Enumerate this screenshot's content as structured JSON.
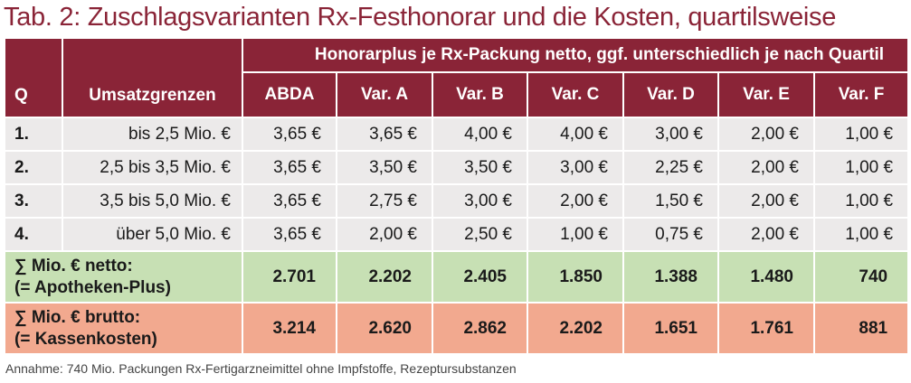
{
  "title": "Tab. 2: Zuschlagsvarianten Rx-Festhonorar und die Kosten, quartilsweise",
  "header": {
    "span_label": "Honorarplus je Rx-Packung netto, ggf. unterschiedlich je nach Quartil",
    "q_label": "Q",
    "umsatz_label": "Umsatzgrenzen",
    "columns": [
      "ABDA",
      "Var. A",
      "Var. B",
      "Var. C",
      "Var. D",
      "Var. E",
      "Var. F"
    ]
  },
  "rows": [
    {
      "q": "1.",
      "range": "bis 2,5 Mio. €",
      "values": [
        "3,65 €",
        "3,65 €",
        "4,00 €",
        "4,00 €",
        "3,00 €",
        "2,00 €",
        "1,00 €"
      ]
    },
    {
      "q": "2.",
      "range": "2,5 bis 3,5 Mio. €",
      "values": [
        "3,65 €",
        "3,50 €",
        "3,50 €",
        "3,00 €",
        "2,25 €",
        "2,00 €",
        "1,00 €"
      ]
    },
    {
      "q": "3.",
      "range": "3,5 bis 5,0 Mio. €",
      "values": [
        "3,65 €",
        "2,75 €",
        "3,00 €",
        "2,00 €",
        "1,50 €",
        "2,00 €",
        "1,00 €"
      ]
    },
    {
      "q": "4.",
      "range": "über 5,0 Mio. €",
      "values": [
        "3,65 €",
        "2,00 €",
        "2,50 €",
        "1,00 €",
        "0,75 €",
        "2,00 €",
        "1,00 €"
      ]
    }
  ],
  "netto": {
    "label_line1": "∑ Mio. € netto:",
    "label_line2": "(= Apotheken-Plus)",
    "values": [
      "2.701",
      "2.202",
      "2.405",
      "1.850",
      "1.388",
      "1.480",
      "740"
    ]
  },
  "brutto": {
    "label_line1": "∑ Mio. € brutto:",
    "label_line2": "(= Kassenkosten)",
    "values": [
      "3.214",
      "2.620",
      "2.862",
      "2.202",
      "1.651",
      "1.761",
      "881"
    ]
  },
  "footnote": "Annahme: 740 Mio. Packungen Rx-Fertigarzneimittel ohne Impfstoffe, Rezeptursubstanzen",
  "colors": {
    "header": "#8a2437",
    "row_bg": "#eceaea",
    "netto_bg": "#c7e0b4",
    "brutto_bg": "#f2a98f"
  }
}
